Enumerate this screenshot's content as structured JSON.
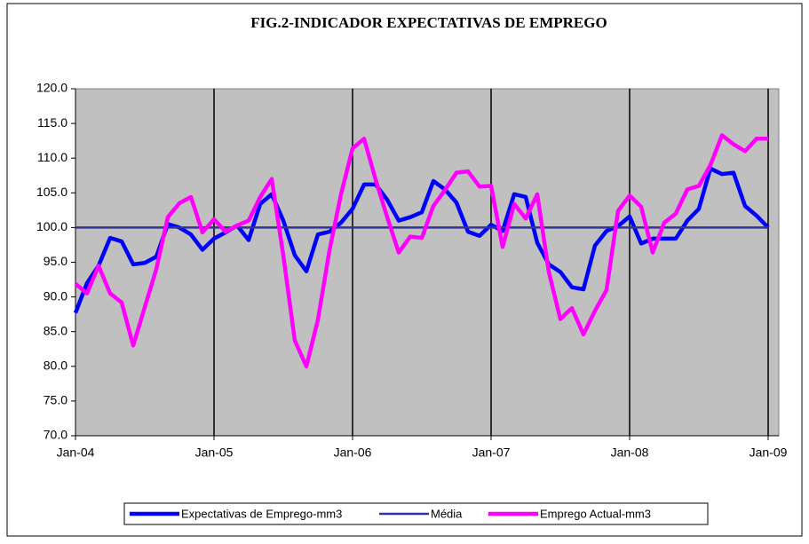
{
  "chart_data": {
    "type": "line",
    "title": "FIG.2-INDICADOR EXPECTATIVAS DE EMPREGO",
    "categories": [
      "Jan-04",
      null,
      null,
      null,
      null,
      null,
      null,
      null,
      null,
      null,
      null,
      null,
      "Jan-05",
      null,
      null,
      null,
      null,
      null,
      null,
      null,
      null,
      null,
      null,
      null,
      "Jan-06",
      null,
      null,
      null,
      null,
      null,
      null,
      null,
      null,
      null,
      null,
      null,
      "Jan-07",
      null,
      null,
      null,
      null,
      null,
      null,
      null,
      null,
      null,
      null,
      null,
      "Jan-08",
      null,
      null,
      null,
      null,
      null,
      null,
      null,
      null,
      null,
      null,
      null,
      "Jan-09"
    ],
    "series": [
      {
        "name": "Expectativas de Emprego-mm3",
        "color": "#0000ff",
        "values": [
          87.7,
          92,
          94.5,
          98.5,
          98,
          94.7,
          94.9,
          95.8,
          100.5,
          100,
          99,
          96.8,
          98.4,
          99.3,
          100.3,
          98.2,
          103.4,
          104.8,
          101,
          96,
          93.7,
          99,
          99.4,
          100.7,
          102.7,
          106.2,
          106.2,
          104,
          101,
          101.5,
          102.2,
          106.7,
          105.5,
          103.6,
          99.4,
          98.8,
          100.4,
          99.5,
          104.8,
          104.4,
          97.8,
          94.7,
          93.6,
          91.4,
          91.1,
          97.4,
          99.5,
          100.2,
          101.6,
          97.7,
          98.4,
          98.4,
          98.4,
          101,
          102.7,
          108.5,
          107.7,
          107.9,
          103.1,
          101.7,
          100
        ]
      },
      {
        "name": "Média",
        "color": "#333399",
        "values": [
          100,
          100,
          100,
          100,
          100,
          100,
          100,
          100,
          100,
          100,
          100,
          100,
          100,
          100,
          100,
          100,
          100,
          100,
          100,
          100,
          100,
          100,
          100,
          100,
          100,
          100,
          100,
          100,
          100,
          100,
          100,
          100,
          100,
          100,
          100,
          100,
          100,
          100,
          100,
          100,
          100,
          100,
          100,
          100,
          100,
          100,
          100,
          100,
          100,
          100,
          100,
          100,
          100,
          100,
          100,
          100,
          100,
          100,
          100,
          100,
          100
        ]
      },
      {
        "name": "Emprego Actual-mm3",
        "color": "#ff00ff",
        "values": [
          91.9,
          90.5,
          94.5,
          90.5,
          89.2,
          83,
          88.5,
          94,
          101.5,
          103.5,
          104.4,
          99.3,
          101.2,
          99.4,
          100.3,
          101,
          104.4,
          107,
          96,
          83.7,
          80,
          86.7,
          96.7,
          104.8,
          111.4,
          112.8,
          106.9,
          101.5,
          96.4,
          98.7,
          98.5,
          103.1,
          105.4,
          107.9,
          108.1,
          105.9,
          106,
          97.2,
          103.4,
          101.3,
          104.8,
          93.6,
          86.8,
          88.4,
          84.6,
          88,
          91,
          102.4,
          104.6,
          103,
          96.4,
          100.7,
          102,
          105.5,
          106,
          109,
          113.3,
          112,
          111,
          112.8,
          112.8
        ]
      }
    ],
    "ylim": [
      70,
      120
    ],
    "yticks": [
      {
        "value": 70,
        "label": "70.0"
      },
      {
        "value": 75,
        "label": "75.0"
      },
      {
        "value": 80,
        "label": "80.0"
      },
      {
        "value": 85,
        "label": "85.0"
      },
      {
        "value": 90,
        "label": "90.0"
      },
      {
        "value": 95,
        "label": "95.0"
      },
      {
        "value": 100,
        "label": "100.0"
      },
      {
        "value": 105,
        "label": "105.0"
      },
      {
        "value": 110,
        "label": "110.0"
      },
      {
        "value": 115,
        "label": "115.0"
      },
      {
        "value": 120,
        "label": "120.0"
      }
    ],
    "xgrid": true,
    "legend": "bottom"
  }
}
